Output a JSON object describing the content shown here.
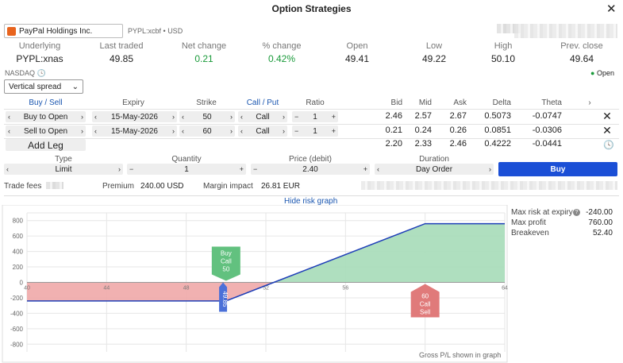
{
  "window": {
    "title": "Option Strategies"
  },
  "instrument": {
    "name": "PayPal Holdings Inc.",
    "code": "PYPL:xcbf",
    "currency": "USD",
    "exchange": "NASDAQ",
    "status": "Open"
  },
  "quote": {
    "labels": [
      "Underlying",
      "Last traded",
      "Net change",
      "% change",
      "Open",
      "Low",
      "High",
      "Prev. close"
    ],
    "values": [
      "PYPL:xnas",
      "49.85",
      "0.21",
      "0.42%",
      "49.41",
      "49.22",
      "50.10",
      "49.64"
    ]
  },
  "strategy": {
    "selected": "Vertical spread"
  },
  "legs_header": {
    "buy_sell": "Buy / Sell",
    "expiry": "Expiry",
    "strike": "Strike",
    "call_put": "Call / Put",
    "ratio": "Ratio",
    "bid": "Bid",
    "mid": "Mid",
    "ask": "Ask",
    "delta": "Delta",
    "theta": "Theta"
  },
  "legs": [
    {
      "action": "Buy to Open",
      "expiry": "15-May-2026",
      "strike": "50",
      "type": "Call",
      "ratio": "1",
      "bid": "2.46",
      "mid": "2.57",
      "ask": "2.67",
      "delta": "0.5073",
      "theta": "-0.0747"
    },
    {
      "action": "Sell to Open",
      "expiry": "15-May-2026",
      "strike": "60",
      "type": "Call",
      "ratio": "1",
      "bid": "0.21",
      "mid": "0.24",
      "ask": "0.26",
      "delta": "0.0851",
      "theta": "-0.0306"
    }
  ],
  "totals": {
    "add_leg": "Add Leg",
    "bid": "2.20",
    "mid": "2.33",
    "ask": "2.46",
    "delta": "0.4222",
    "theta": "-0.0441"
  },
  "order": {
    "type_label": "Type",
    "type_value": "Limit",
    "qty_label": "Quantity",
    "qty_value": "1",
    "price_label": "Price (debit)",
    "price_value": "2.40",
    "duration_label": "Duration",
    "duration_value": "Day Order",
    "buy_label": "Buy"
  },
  "fees": {
    "trade_fees": "Trade fees",
    "premium_label": "Premium",
    "premium_value": "240.00 USD",
    "margin_label": "Margin impact",
    "margin_value": "26.81 EUR"
  },
  "graph": {
    "toggle_label": "Hide risk graph",
    "footnote": "Gross P/L shown in graph",
    "stats": [
      {
        "label": "Max risk at expiry",
        "value": "-240.00"
      },
      {
        "label": "Max profit",
        "value": "760.00"
      },
      {
        "label": "Breakeven",
        "value": "52.40"
      }
    ],
    "markers": {
      "buy": {
        "lines": [
          "Buy",
          "Call",
          "50"
        ],
        "strike": 50
      },
      "sell": {
        "lines": [
          "60",
          "Call",
          "Sell"
        ],
        "strike": 60
      },
      "spot": {
        "label": "49.85",
        "value": 49.85
      }
    },
    "colors": {
      "loss": "#f0a8a8",
      "profit": "#a6dbb8",
      "line": "#1f3fb8",
      "buy_marker": "#62c17f",
      "sell_marker": "#e07a7a",
      "spot_marker": "#4b70d8"
    }
  },
  "chart_data": {
    "type": "area",
    "x": [
      40,
      50,
      52.4,
      60,
      64
    ],
    "y": [
      -240,
      -240,
      0,
      760,
      760
    ],
    "xlim": [
      40,
      64
    ],
    "ylim": [
      -900,
      900
    ],
    "x_ticks": [
      "40",
      "44",
      "48",
      "52",
      "56",
      "60",
      "64"
    ],
    "x_tick_values": [
      40,
      44,
      48,
      52,
      56,
      60,
      64
    ],
    "y_ticks": [
      "800",
      "600",
      "400",
      "200",
      "0",
      "-200",
      "-400",
      "-600",
      "-800"
    ],
    "y_tick_values": [
      800,
      600,
      400,
      200,
      0,
      -200,
      -400,
      -600,
      -800
    ],
    "grid": true
  }
}
